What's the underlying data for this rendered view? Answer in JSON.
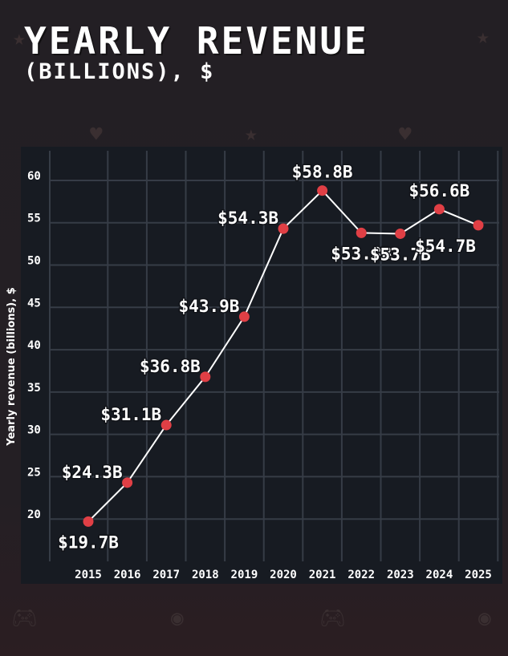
{
  "title": "YEARLY REVENUE",
  "subtitle": "(BILLIONS), $",
  "colors": {
    "background": "#231f24",
    "plot_background": "#171b22",
    "grid": "#363c46",
    "line": "#ffffff",
    "marker": "#e03f45",
    "text": "#ffffff",
    "decoration": "#3a2f31"
  },
  "decorations": [
    "star-icon",
    "star-icon",
    "heart-icon",
    "star-icon",
    "heart-icon",
    "gamepad-icon",
    "coin-icon",
    "gamepad-icon",
    "coin-icon"
  ],
  "chart_data": {
    "type": "line",
    "title": "",
    "xlabel": "",
    "ylabel": "Yearly revenue (billions), $",
    "categories": [
      "2015",
      "2016",
      "2017",
      "2018",
      "2019",
      "2020",
      "2021",
      "2022",
      "2023",
      "2024",
      "2025"
    ],
    "values": [
      19.7,
      24.3,
      31.1,
      36.8,
      43.9,
      54.3,
      58.8,
      53.8,
      53.7,
      56.6,
      54.7
    ],
    "data_labels": [
      "$19.7B",
      "$24.3B",
      "$31.1B",
      "$36.8B",
      "$43.9B",
      "$54.3B",
      "$58.8B",
      "$53.8B",
      "$53.7B",
      "$56.6B",
      "$54.7B"
    ],
    "data_label_positions": [
      "below",
      "above-left",
      "above-left",
      "above-left",
      "above-left",
      "above-left",
      "above",
      "below",
      "below",
      "above",
      "below"
    ],
    "yticks": [
      20,
      25,
      30,
      35,
      40,
      45,
      50,
      55,
      60
    ],
    "ylim": [
      15,
      63.5
    ],
    "grid": true,
    "legend": "none"
  }
}
